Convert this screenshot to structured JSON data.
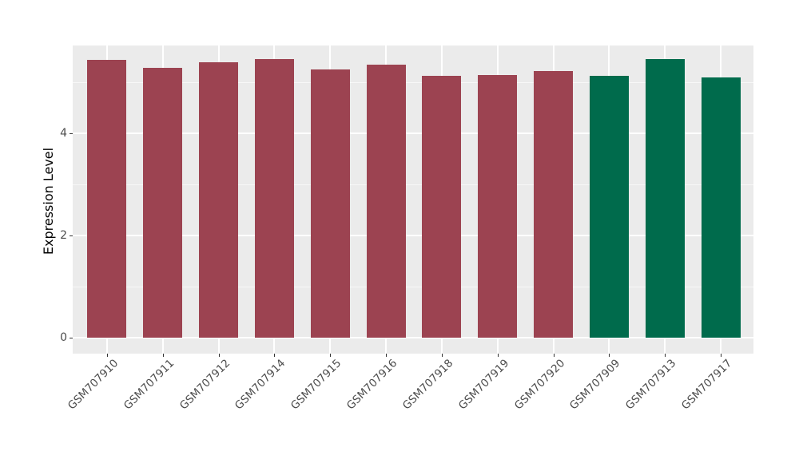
{
  "chart_data": {
    "type": "bar",
    "title": "",
    "xlabel": "",
    "ylabel": "Expression Level",
    "categories": [
      "GSM707910",
      "GSM707911",
      "GSM707912",
      "GSM707914",
      "GSM707915",
      "GSM707916",
      "GSM707918",
      "GSM707919",
      "GSM707920",
      "GSM707909",
      "GSM707913",
      "GSM707917"
    ],
    "values": [
      5.44,
      5.28,
      5.39,
      5.45,
      5.25,
      5.34,
      5.13,
      5.14,
      5.22,
      5.13,
      5.45,
      5.09
    ],
    "bar_colors": [
      "#9C4351",
      "#9C4351",
      "#9C4351",
      "#9C4351",
      "#9C4351",
      "#9C4351",
      "#9C4351",
      "#9C4351",
      "#9C4351",
      "#006B4C",
      "#006B4C",
      "#006B4C"
    ],
    "group_colors": {
      "red": "#9C4351",
      "green": "#006B4C"
    },
    "y_ticks": [
      0,
      2,
      4
    ],
    "y_tick_labels": [
      "0",
      "2",
      "4"
    ],
    "y_minor_ticks": [
      1,
      3,
      5
    ],
    "ylim": [
      -0.31,
      5.72
    ],
    "grid": "on",
    "legend": "none",
    "panel_background": "#EBEBEB",
    "gridline_color": "#FFFFFF",
    "axis_text_color": "#4D4D4D"
  }
}
